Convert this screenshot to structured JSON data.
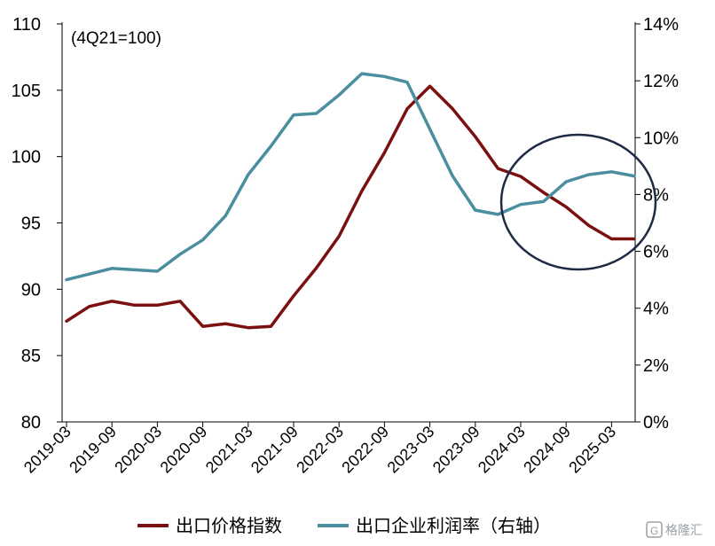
{
  "chart_data": {
    "type": "line",
    "annotation": "(4Q21=100)",
    "x": [
      "2019-03",
      "2019-06",
      "2019-09",
      "2019-12",
      "2020-03",
      "2020-06",
      "2020-09",
      "2020-12",
      "2021-03",
      "2021-06",
      "2021-09",
      "2021-12",
      "2022-03",
      "2022-06",
      "2022-09",
      "2022-12",
      "2023-03",
      "2023-06",
      "2023-09",
      "2023-12",
      "2024-03",
      "2024-06",
      "2024-09",
      "2024-12",
      "2025-03",
      "2025-06"
    ],
    "x_tick_labels": [
      "2019-03",
      "2019-09",
      "2020-03",
      "2020-09",
      "2021-03",
      "2021-09",
      "2022-03",
      "2022-09",
      "2023-03",
      "2023-09",
      "2024-03",
      "2024-09",
      "2025-03"
    ],
    "y_left": {
      "ylim": [
        80,
        110
      ],
      "ticks": [
        80,
        85,
        90,
        95,
        100,
        105,
        110
      ]
    },
    "y_right": {
      "ylim": [
        0,
        14
      ],
      "ticks": [
        0,
        2,
        4,
        6,
        8,
        10,
        12,
        14
      ],
      "tick_format": "%"
    },
    "series": [
      {
        "name": "出口价格指数",
        "axis": "left",
        "color": "#7b1010",
        "values": [
          87.6,
          88.7,
          89.1,
          88.8,
          88.8,
          89.1,
          87.2,
          87.4,
          87.1,
          87.2,
          89.5,
          91.6,
          94.0,
          97.4,
          100.3,
          103.6,
          105.3,
          103.6,
          101.5,
          99.1,
          98.5,
          97.3,
          96.2,
          94.8,
          93.8,
          93.8
        ]
      },
      {
        "name": "出口企业利润率（右轴）",
        "axis": "right",
        "color": "#4a8ea0",
        "values": [
          5.0,
          5.2,
          5.4,
          5.35,
          5.3,
          5.9,
          6.4,
          7.25,
          8.7,
          9.7,
          10.8,
          10.85,
          11.5,
          12.25,
          12.15,
          11.95,
          10.3,
          8.65,
          7.45,
          7.3,
          7.65,
          7.75,
          8.45,
          8.7,
          8.8,
          8.65
        ]
      }
    ],
    "highlight": {
      "shape": "ellipse",
      "color": "#1f2a44",
      "x_range": [
        "2023-12",
        "2025-06"
      ]
    },
    "legend_position": "bottom",
    "grid": false
  },
  "watermark": {
    "text": "格隆汇",
    "icon": "gelonghui-logo-icon"
  }
}
